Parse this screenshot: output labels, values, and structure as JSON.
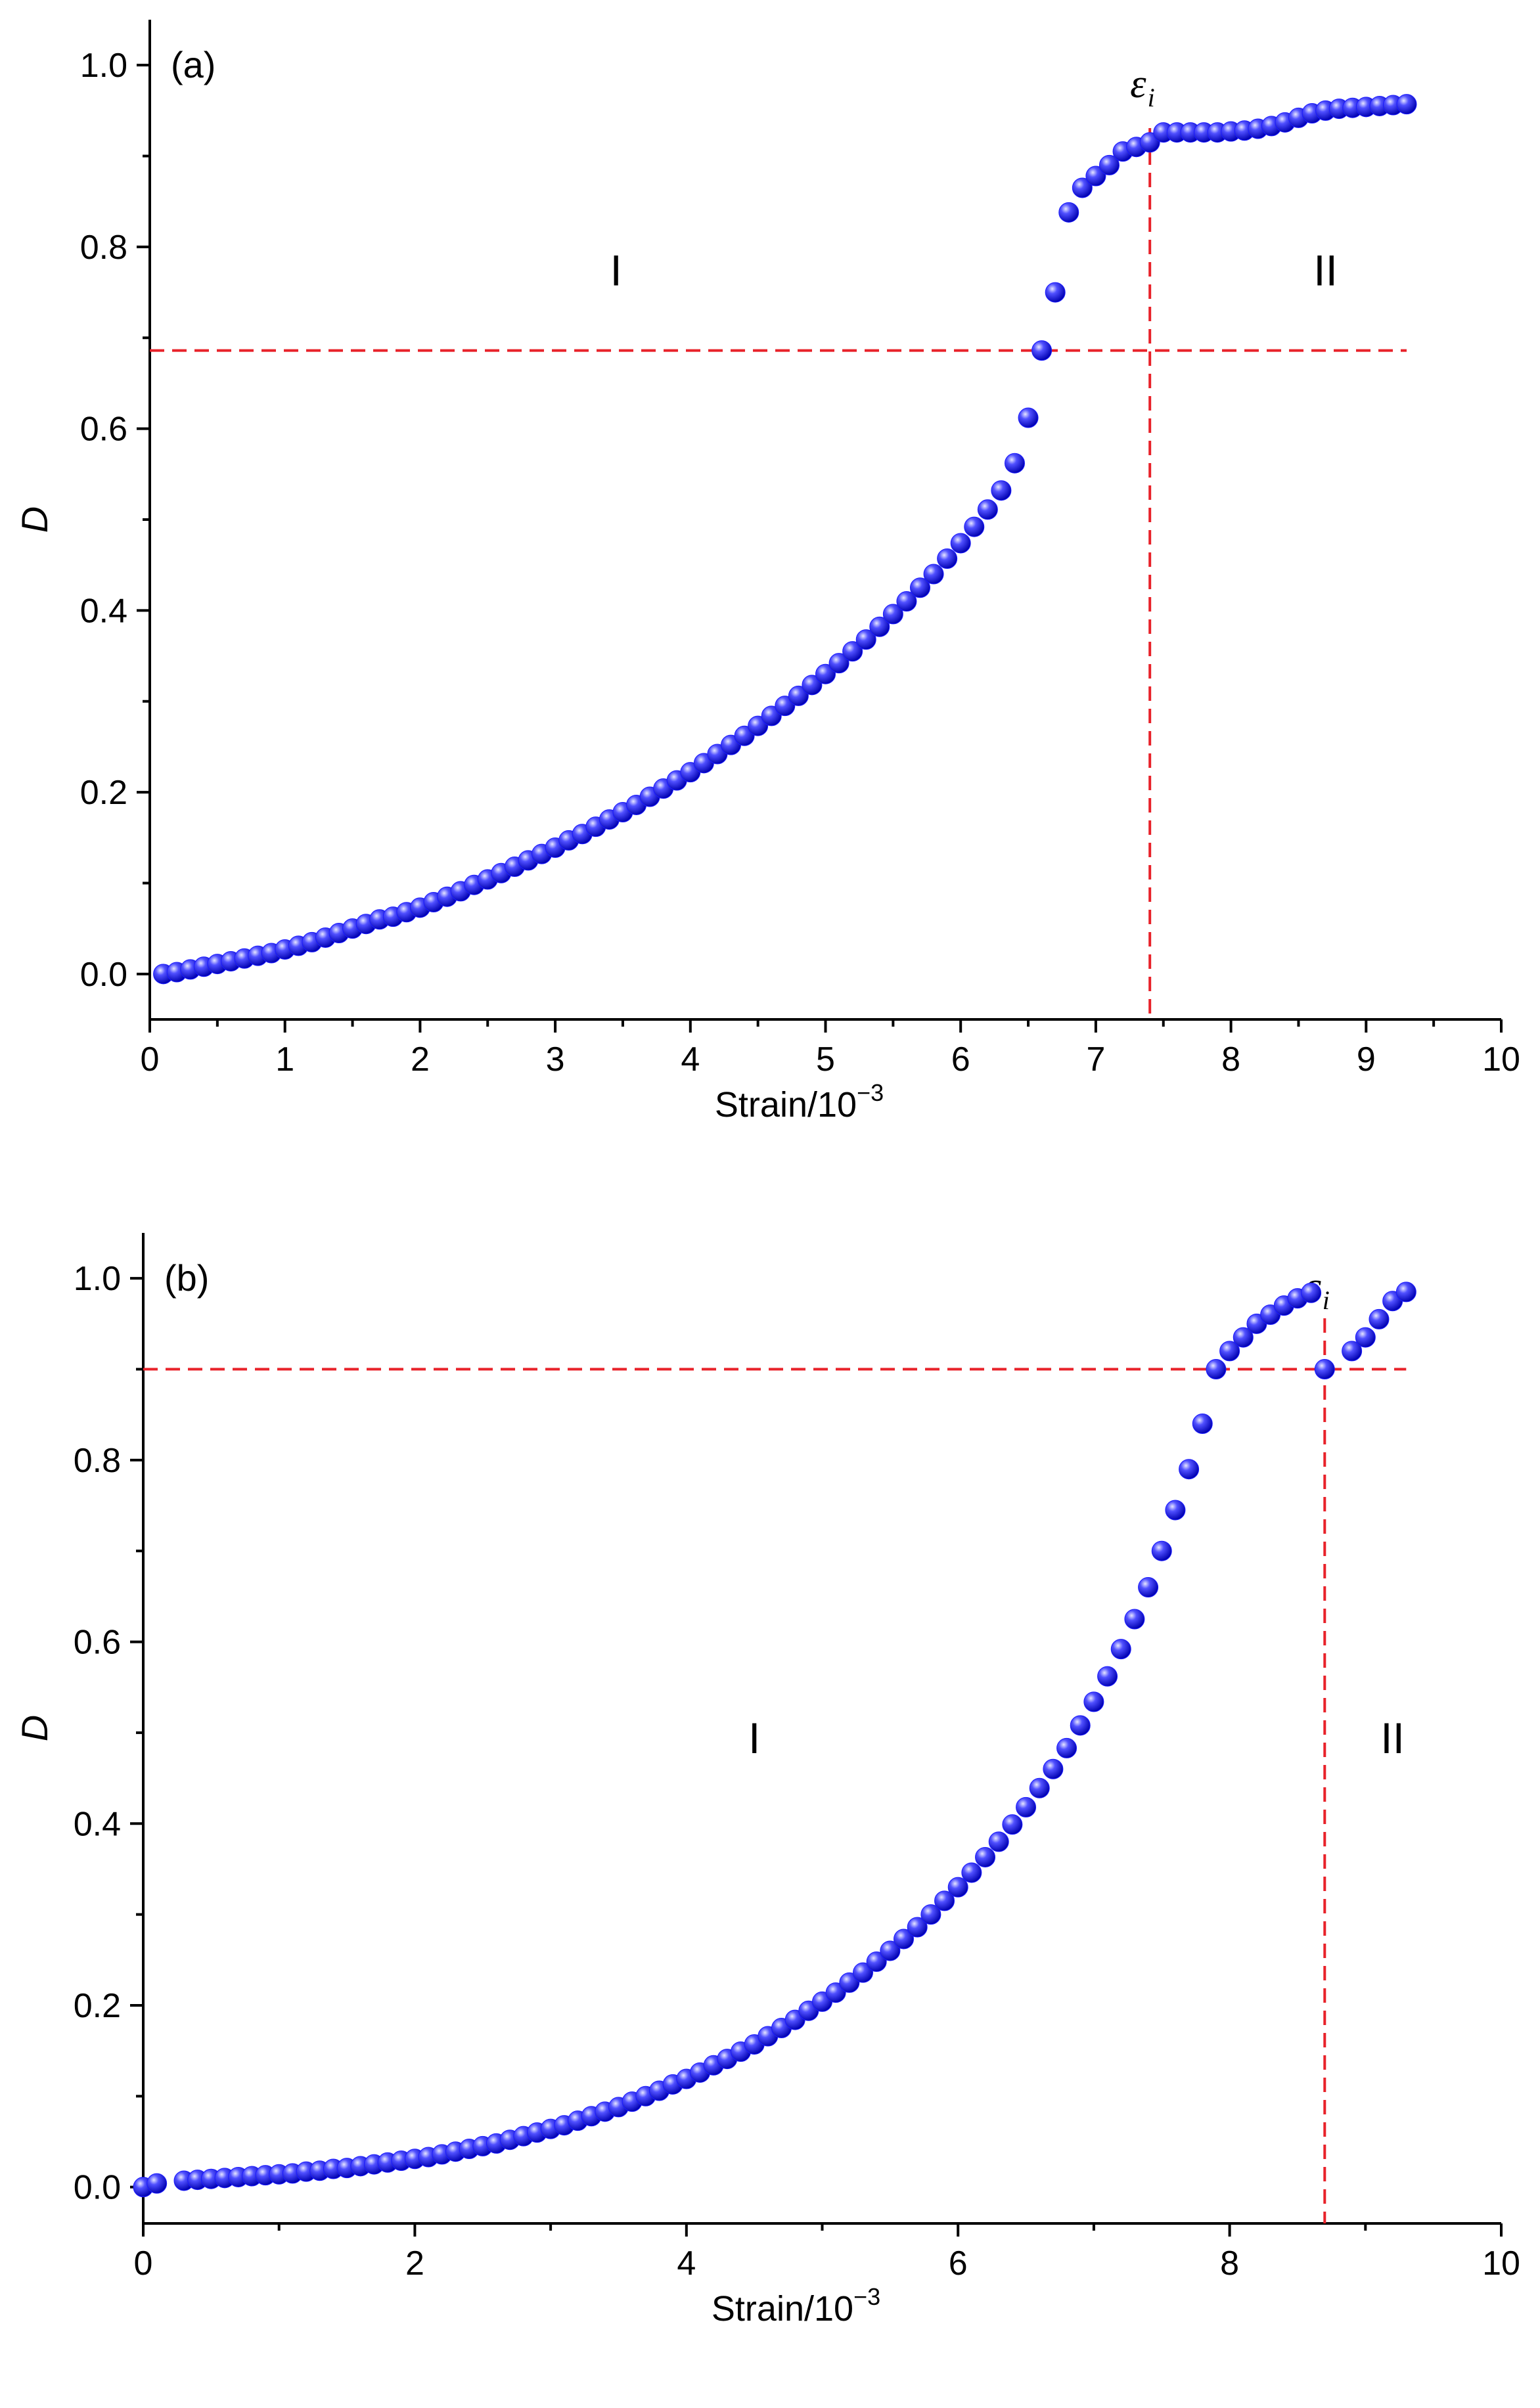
{
  "chart_data": [
    {
      "panel_label": "(a)",
      "type": "scatter",
      "xlabel": "Strain/10",
      "xlabel_exp": "−3",
      "ylabel": "D",
      "xlim": [
        0,
        10
      ],
      "ylim": [
        -0.05,
        1.05
      ],
      "xticks": [
        0,
        1,
        2,
        3,
        4,
        5,
        6,
        7,
        8,
        9,
        10
      ],
      "xtick_labels": [
        "0",
        "1",
        "2",
        "3",
        "4",
        "5",
        "6",
        "7",
        "8",
        "9",
        "10"
      ],
      "yticks": [
        0.0,
        0.2,
        0.4,
        0.6,
        0.8,
        1.0
      ],
      "ytick_labels": [
        "0.0",
        "0.2",
        "0.4",
        "0.6",
        "0.8",
        "1.0"
      ],
      "marker_color": "#1a1aff",
      "reference_color": "#e8222a",
      "threshold": {
        "x": 7.4,
        "y": 0.686,
        "symbol": "ε",
        "subscript": "i"
      },
      "regions": [
        {
          "label": "I",
          "x": 3.45,
          "y": 0.775
        },
        {
          "label": "II",
          "x": 8.7,
          "y": 0.775
        }
      ],
      "series": [
        {
          "x": [
            0.1,
            0.2,
            0.3,
            0.4,
            0.5,
            0.6,
            0.7,
            0.8,
            0.9,
            1.0,
            1.1,
            1.2,
            1.3,
            1.4,
            1.5,
            1.6,
            1.7,
            1.8,
            1.9,
            2.0,
            2.1,
            2.2,
            2.3,
            2.4,
            2.5,
            2.6,
            2.7,
            2.8,
            2.9,
            3.0,
            3.1,
            3.2,
            3.3,
            3.4,
            3.5,
            3.6,
            3.7,
            3.8,
            3.9,
            4.0,
            4.1,
            4.2,
            4.3,
            4.4,
            4.5,
            4.6,
            4.7,
            4.8,
            4.9,
            5.0,
            5.1,
            5.2,
            5.3,
            5.4,
            5.5,
            5.6,
            5.7,
            5.8,
            5.9,
            6.0,
            6.1,
            6.2,
            6.3,
            6.4,
            6.5,
            6.6,
            6.7,
            6.8,
            6.9,
            7.0,
            7.1,
            7.2,
            7.3,
            7.4,
            7.5,
            7.6,
            7.7,
            7.8,
            7.9,
            8.0,
            8.1,
            8.2,
            8.3,
            8.4,
            8.5,
            8.6,
            8.7,
            8.8,
            8.9,
            9.0,
            9.1,
            9.2,
            9.3
          ],
          "y": [
            0.0,
            0.002,
            0.005,
            0.008,
            0.011,
            0.014,
            0.017,
            0.02,
            0.023,
            0.027,
            0.031,
            0.035,
            0.04,
            0.045,
            0.05,
            0.055,
            0.06,
            0.063,
            0.068,
            0.073,
            0.079,
            0.085,
            0.091,
            0.098,
            0.104,
            0.111,
            0.118,
            0.125,
            0.132,
            0.139,
            0.147,
            0.154,
            0.162,
            0.17,
            0.178,
            0.186,
            0.195,
            0.204,
            0.213,
            0.222,
            0.232,
            0.242,
            0.252,
            0.262,
            0.273,
            0.284,
            0.295,
            0.306,
            0.318,
            0.33,
            0.342,
            0.355,
            0.368,
            0.382,
            0.396,
            0.41,
            0.425,
            0.44,
            0.457,
            0.474,
            0.492,
            0.511,
            0.532,
            0.562,
            0.612,
            0.686,
            0.75,
            0.838,
            0.865,
            0.878,
            0.89,
            0.905,
            0.91,
            0.915,
            0.926,
            0.926,
            0.926,
            0.926,
            0.926,
            0.927,
            0.928,
            0.93,
            0.933,
            0.937,
            0.942,
            0.947,
            0.95,
            0.952,
            0.953,
            0.954,
            0.955,
            0.956,
            0.957
          ]
        }
      ]
    },
    {
      "panel_label": "(b)",
      "type": "scatter",
      "xlabel": "Strain/10",
      "xlabel_exp": "−3",
      "ylabel": "D",
      "xlim": [
        0,
        10
      ],
      "ylim": [
        -0.04,
        1.05
      ],
      "xticks": [
        0,
        2,
        4,
        6,
        8,
        10
      ],
      "xtick_labels": [
        "0",
        "2",
        "4",
        "6",
        "8",
        "10"
      ],
      "yticks": [
        0.0,
        0.2,
        0.4,
        0.6,
        0.8,
        1.0
      ],
      "ytick_labels": [
        "0.0",
        "0.2",
        "0.4",
        "0.6",
        "0.8",
        "1.0"
      ],
      "marker_color": "#1a1aff",
      "reference_color": "#e8222a",
      "threshold": {
        "x": 8.7,
        "y": 0.9,
        "symbol": "ε",
        "subscript": "i"
      },
      "regions": [
        {
          "label": "I",
          "x": 4.5,
          "y": 0.495
        },
        {
          "label": "II",
          "x": 9.2,
          "y": 0.495
        }
      ],
      "series": [
        {
          "x": [
            0.0,
            0.1,
            0.3,
            0.4,
            0.5,
            0.6,
            0.7,
            0.8,
            0.9,
            1.0,
            1.1,
            1.2,
            1.3,
            1.4,
            1.5,
            1.6,
            1.7,
            1.8,
            1.9,
            2.0,
            2.1,
            2.2,
            2.3,
            2.4,
            2.5,
            2.6,
            2.7,
            2.8,
            2.9,
            3.0,
            3.1,
            3.2,
            3.3,
            3.4,
            3.5,
            3.6,
            3.7,
            3.8,
            3.9,
            4.0,
            4.1,
            4.2,
            4.3,
            4.4,
            4.5,
            4.6,
            4.7,
            4.8,
            4.9,
            5.0,
            5.1,
            5.2,
            5.3,
            5.4,
            5.5,
            5.6,
            5.7,
            5.8,
            5.9,
            6.0,
            6.1,
            6.2,
            6.3,
            6.4,
            6.5,
            6.6,
            6.7,
            6.8,
            6.9,
            7.0,
            7.1,
            7.2,
            7.3,
            7.4,
            7.5,
            7.6,
            7.7,
            7.8,
            7.9,
            8.0,
            8.1,
            8.2,
            8.3,
            8.4,
            8.5,
            8.6,
            8.7,
            8.9,
            9.0,
            9.1,
            9.2,
            9.3
          ],
          "y": [
            0.0,
            0.004,
            0.007,
            0.008,
            0.009,
            0.01,
            0.011,
            0.012,
            0.013,
            0.014,
            0.015,
            0.017,
            0.018,
            0.02,
            0.021,
            0.023,
            0.025,
            0.027,
            0.029,
            0.031,
            0.033,
            0.036,
            0.039,
            0.042,
            0.045,
            0.048,
            0.052,
            0.056,
            0.06,
            0.064,
            0.068,
            0.073,
            0.078,
            0.083,
            0.088,
            0.094,
            0.1,
            0.106,
            0.113,
            0.119,
            0.126,
            0.134,
            0.141,
            0.149,
            0.157,
            0.166,
            0.175,
            0.184,
            0.194,
            0.204,
            0.214,
            0.225,
            0.236,
            0.248,
            0.26,
            0.273,
            0.286,
            0.3,
            0.315,
            0.33,
            0.346,
            0.363,
            0.38,
            0.399,
            0.418,
            0.439,
            0.46,
            0.483,
            0.508,
            0.534,
            0.562,
            0.592,
            0.625,
            0.66,
            0.7,
            0.745,
            0.79,
            0.84,
            0.9,
            0.92,
            0.935,
            0.95,
            0.96,
            0.97,
            0.978,
            0.984,
            0.9,
            0.92,
            0.935,
            0.955,
            0.975,
            0.985
          ]
        }
      ]
    }
  ]
}
